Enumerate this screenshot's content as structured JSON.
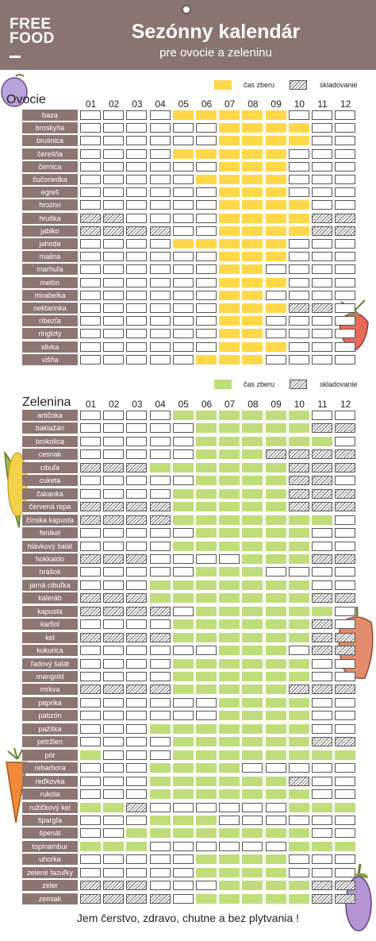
{
  "header": {
    "logo_line1": "FREE",
    "logo_line2": "FOOD",
    "title": "Sezónny kalendár",
    "subtitle": "pre ovocie a zeleninu"
  },
  "months": [
    "01",
    "02",
    "03",
    "04",
    "05",
    "06",
    "07",
    "08",
    "09",
    "10",
    "11",
    "12"
  ],
  "fruits": {
    "title": "Ovocie",
    "legend": {
      "harvest": "čas zberu",
      "storage": "skladovanie",
      "harvest_color": "#ffd84a"
    },
    "rows": [
      {
        "name": "baza",
        "harvest": [
          5,
          6,
          7,
          8,
          9
        ],
        "storage": []
      },
      {
        "name": "broskyňa",
        "harvest": [
          7,
          8,
          9,
          10
        ],
        "storage": []
      },
      {
        "name": "brusnica",
        "harvest": [
          7,
          8,
          9,
          10
        ],
        "storage": []
      },
      {
        "name": "čerešňa",
        "harvest": [
          5,
          6,
          7,
          8,
          9
        ],
        "storage": []
      },
      {
        "name": "černica",
        "harvest": [
          7,
          8,
          9
        ],
        "storage": []
      },
      {
        "name": "čučoriedka",
        "harvest": [
          6,
          7,
          8,
          9
        ],
        "storage": []
      },
      {
        "name": "egreš",
        "harvest": [
          7,
          8,
          9
        ],
        "storage": []
      },
      {
        "name": "hrozno",
        "harvest": [
          7,
          8,
          9,
          10
        ],
        "storage": []
      },
      {
        "name": "hruška",
        "harvest": [
          7,
          8,
          9,
          10
        ],
        "storage": [
          1,
          2,
          11,
          12
        ]
      },
      {
        "name": "jablko",
        "harvest": [
          7,
          8,
          9,
          10
        ],
        "storage": [
          1,
          2,
          3,
          4,
          11,
          12
        ]
      },
      {
        "name": "jahoda",
        "harvest": [
          5,
          6,
          7,
          8,
          9
        ],
        "storage": []
      },
      {
        "name": "malina",
        "harvest": [
          7,
          8,
          9
        ],
        "storage": []
      },
      {
        "name": "marhuľa",
        "harvest": [
          7,
          8
        ],
        "storage": []
      },
      {
        "name": "melón",
        "harvest": [
          7,
          8,
          9
        ],
        "storage": []
      },
      {
        "name": "mirabelka",
        "harvest": [
          7,
          8
        ],
        "storage": []
      },
      {
        "name": "nektarinka",
        "harvest": [
          7,
          8,
          9
        ],
        "storage": [
          10,
          11
        ]
      },
      {
        "name": "ríbezľa",
        "harvest": [
          7,
          8
        ],
        "storage": []
      },
      {
        "name": "ringloty",
        "harvest": [
          7,
          8
        ],
        "storage": []
      },
      {
        "name": "slivka",
        "harvest": [
          7,
          8,
          9
        ],
        "storage": []
      },
      {
        "name": "višňa",
        "harvest": [
          6,
          7,
          8
        ],
        "storage": []
      }
    ]
  },
  "vegetables": {
    "title": "Zelenina",
    "legend": {
      "harvest": "čas zberu",
      "storage": "skladovanie",
      "harvest_color": "#bfdd7a"
    },
    "rows": [
      {
        "name": "artičoka",
        "harvest": [
          5,
          6,
          7,
          8,
          9,
          10
        ],
        "storage": []
      },
      {
        "name": "baklažán",
        "harvest": [
          6,
          7,
          8,
          9,
          10
        ],
        "storage": [
          11,
          12
        ]
      },
      {
        "name": "brokolica",
        "harvest": [
          6,
          7,
          8,
          9,
          10,
          11
        ],
        "storage": []
      },
      {
        "name": "cesnak",
        "harvest": [
          6,
          7,
          8
        ],
        "storage": [
          9,
          10,
          11,
          12
        ]
      },
      {
        "name": "cibuľa",
        "harvest": [
          4,
          5,
          6,
          7,
          8,
          9
        ],
        "storage": [
          1,
          2,
          3,
          10,
          11,
          12
        ]
      },
      {
        "name": "cuketa",
        "harvest": [
          6,
          7,
          8,
          9
        ],
        "storage": [
          10,
          11
        ]
      },
      {
        "name": "čakanka",
        "harvest": [
          5,
          6,
          7,
          8,
          9
        ],
        "storage": [
          10,
          11,
          12
        ]
      },
      {
        "name": "červená repa",
        "harvest": [
          5,
          6,
          7,
          8,
          9
        ],
        "storage": [
          1,
          2,
          3,
          4,
          10,
          11,
          12
        ]
      },
      {
        "name": "čínska kapusta",
        "harvest": [
          5,
          6,
          7,
          8,
          9,
          10,
          11
        ],
        "storage": [
          1,
          2,
          3,
          4
        ]
      },
      {
        "name": "fenikel",
        "harvest": [
          6,
          7,
          8,
          9,
          10
        ],
        "storage": []
      },
      {
        "name": "hlávkový šalát",
        "harvest": [
          5,
          6,
          7,
          8,
          9,
          10
        ],
        "storage": []
      },
      {
        "name": "hokkaido",
        "harvest": [
          8,
          9,
          10
        ],
        "storage": [
          1,
          2,
          3,
          11,
          12
        ]
      },
      {
        "name": "hrášok",
        "harvest": [
          6,
          7,
          8
        ],
        "storage": []
      },
      {
        "name": "jarná cibuľka",
        "harvest": [
          4,
          5,
          6,
          7,
          8,
          9,
          10
        ],
        "storage": []
      },
      {
        "name": "kaleráb",
        "harvest": [
          4,
          5,
          6,
          7,
          8,
          9,
          10
        ],
        "storage": [
          1,
          2,
          3,
          11,
          12
        ]
      },
      {
        "name": "kapusta",
        "harvest": [
          6,
          7,
          8,
          9,
          10,
          11
        ],
        "storage": [
          1,
          2,
          3,
          4
        ]
      },
      {
        "name": "karfiol",
        "harvest": [
          5,
          6,
          7,
          8,
          9,
          10
        ],
        "storage": [
          11
        ]
      },
      {
        "name": "kel",
        "harvest": [
          5,
          6,
          7,
          8,
          9,
          10
        ],
        "storage": [
          1,
          2,
          3,
          4,
          11,
          12
        ]
      },
      {
        "name": "kukurica",
        "harvest": [
          7,
          8,
          9
        ],
        "storage": [
          11,
          12
        ]
      },
      {
        "name": "ľadový šalát",
        "harvest": [
          5,
          6,
          7,
          8,
          9,
          10
        ],
        "storage": []
      },
      {
        "name": "mangold",
        "harvest": [
          5,
          6,
          7,
          8,
          9,
          10
        ],
        "storage": []
      },
      {
        "name": "mrkva",
        "harvest": [
          5,
          6,
          7,
          8,
          9
        ],
        "storage": [
          1,
          2,
          3,
          4,
          10,
          11,
          12
        ]
      },
      {
        "name": "paprika",
        "harvest": [
          7,
          8,
          9,
          10
        ],
        "storage": []
      },
      {
        "name": "patizón",
        "harvest": [
          7,
          8,
          9,
          10
        ],
        "storage": []
      },
      {
        "name": "pažítka",
        "harvest": [
          4,
          5,
          6,
          7,
          8,
          9,
          10
        ],
        "storage": []
      },
      {
        "name": "petržlen",
        "harvest": [
          5,
          6,
          7,
          8,
          9,
          10
        ],
        "storage": [
          11,
          12
        ]
      },
      {
        "name": "pór",
        "harvest": [
          1,
          5,
          6,
          7,
          8,
          9,
          10,
          11,
          12
        ],
        "storage": []
      },
      {
        "name": "rebarbora",
        "harvest": [
          4,
          5,
          6,
          7
        ],
        "storage": []
      },
      {
        "name": "reďkovka",
        "harvest": [
          4,
          5,
          6,
          7,
          8,
          9
        ],
        "storage": [
          10
        ]
      },
      {
        "name": "rukola",
        "harvest": [
          4,
          5,
          6,
          7,
          8,
          9,
          10
        ],
        "storage": []
      },
      {
        "name": "ružičkový kel",
        "harvest": [
          1,
          2,
          10,
          11,
          12
        ],
        "storage": [
          3
        ]
      },
      {
        "name": "špargľa",
        "harvest": [
          4,
          5,
          6
        ],
        "storage": []
      },
      {
        "name": "špenát",
        "harvest": [
          3,
          4,
          5,
          6,
          7,
          8,
          9,
          10
        ],
        "storage": []
      },
      {
        "name": "topinambur",
        "harvest": [
          1,
          2,
          3,
          10,
          11,
          12
        ],
        "storage": []
      },
      {
        "name": "uhorka",
        "harvest": [
          6,
          7,
          8,
          9
        ],
        "storage": []
      },
      {
        "name": "zelené fazuľky",
        "harvest": [
          6,
          7,
          8,
          9
        ],
        "storage": []
      },
      {
        "name": "zeler",
        "harvest": [
          7,
          8,
          9,
          10
        ],
        "storage": [
          1,
          2,
          3,
          11,
          12
        ]
      },
      {
        "name": "zemiak",
        "harvest": [
          6,
          7,
          8,
          9,
          10
        ],
        "storage": [
          1,
          2,
          3,
          4,
          11,
          12
        ]
      }
    ]
  },
  "footer": "Jem čerstvo, zdravo, chutne a bez plytvania !"
}
